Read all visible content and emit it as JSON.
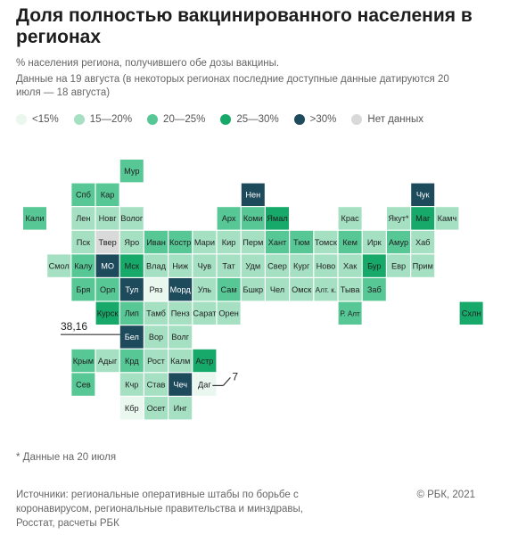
{
  "title": "Доля полностью вакцинированного населения в регионах",
  "subtitle": "% населения региона, получившего обе дозы вакцины.",
  "date_note": "Данные на 19 августа (в некоторых регионах последние доступные данные датируются 20 июля — 18 августа)",
  "footnote": "* Данные на 20 июля",
  "sources": "Источники: региональные оперативные штабы по борьбе с коронавирусом, региональные правительства и минздравы, Росстат, расчеты РБК",
  "copyright": "© РБК, 2021",
  "colors": {
    "c1": "#e9f7ef",
    "c2": "#a6e0c3",
    "c3": "#57c796",
    "c4": "#17a96a",
    "c5": "#1e4b5c",
    "nodata": "#d9d9d9",
    "leader_line": "#333333",
    "cell_text_dark": "#1f1f1f",
    "cell_text_light": "#ffffff"
  },
  "legend": [
    {
      "label": "<15%",
      "cat": "c1"
    },
    {
      "label": "15—20%",
      "cat": "c2"
    },
    {
      "label": "20—25%",
      "cat": "c3"
    },
    {
      "label": "25—30%",
      "cat": "c4"
    },
    {
      "label": ">30%",
      "cat": "c5"
    },
    {
      "label": "Нет данных",
      "cat": "nodata"
    }
  ],
  "chart_data": {
    "type": "heatmap",
    "callouts": [
      {
        "region": "Бел",
        "value": "38,16"
      },
      {
        "region": "Даг",
        "value": "7"
      }
    ],
    "cells": [
      {
        "label": "Мур",
        "col": 4,
        "row": 0,
        "cat": "c3"
      },
      {
        "label": "Спб",
        "col": 2,
        "row": 1,
        "cat": "c3"
      },
      {
        "label": "Кар",
        "col": 3,
        "row": 1,
        "cat": "c3"
      },
      {
        "label": "Нен",
        "col": 9,
        "row": 1,
        "cat": "c5"
      },
      {
        "label": "Чук",
        "col": 16,
        "row": 1,
        "cat": "c5"
      },
      {
        "label": "Кали",
        "col": 0,
        "row": 2,
        "cat": "c3"
      },
      {
        "label": "Лен",
        "col": 2,
        "row": 2,
        "cat": "c2"
      },
      {
        "label": "Новг",
        "col": 3,
        "row": 2,
        "cat": "c2"
      },
      {
        "label": "Волог",
        "col": 4,
        "row": 2,
        "cat": "c2"
      },
      {
        "label": "Арх",
        "col": 8,
        "row": 2,
        "cat": "c3"
      },
      {
        "label": "Коми",
        "col": 9,
        "row": 2,
        "cat": "c3"
      },
      {
        "label": "Ямал",
        "col": 10,
        "row": 2,
        "cat": "c4"
      },
      {
        "label": "Крас",
        "col": 13,
        "row": 2,
        "cat": "c2"
      },
      {
        "label": "Якут*",
        "col": 15,
        "row": 2,
        "cat": "c2"
      },
      {
        "label": "Маг",
        "col": 16,
        "row": 2,
        "cat": "c4"
      },
      {
        "label": "Камч",
        "col": 17,
        "row": 2,
        "cat": "c2"
      },
      {
        "label": "Пск",
        "col": 2,
        "row": 3,
        "cat": "c2"
      },
      {
        "label": "Твер",
        "col": 3,
        "row": 3,
        "cat": "nodata"
      },
      {
        "label": "Яро",
        "col": 4,
        "row": 3,
        "cat": "c2"
      },
      {
        "label": "Иван",
        "col": 5,
        "row": 3,
        "cat": "c3"
      },
      {
        "label": "Костр",
        "col": 6,
        "row": 3,
        "cat": "c3"
      },
      {
        "label": "Мари",
        "col": 7,
        "row": 3,
        "cat": "c2"
      },
      {
        "label": "Кир",
        "col": 8,
        "row": 3,
        "cat": "c2"
      },
      {
        "label": "Перм",
        "col": 9,
        "row": 3,
        "cat": "c2"
      },
      {
        "label": "Хант",
        "col": 10,
        "row": 3,
        "cat": "c3"
      },
      {
        "label": "Тюм",
        "col": 11,
        "row": 3,
        "cat": "c3"
      },
      {
        "label": "Томск",
        "col": 12,
        "row": 3,
        "cat": "c2"
      },
      {
        "label": "Кем",
        "col": 13,
        "row": 3,
        "cat": "c3"
      },
      {
        "label": "Ирк",
        "col": 14,
        "row": 3,
        "cat": "c2"
      },
      {
        "label": "Амур",
        "col": 15,
        "row": 3,
        "cat": "c3"
      },
      {
        "label": "Хаб",
        "col": 16,
        "row": 3,
        "cat": "c2"
      },
      {
        "label": "Смол",
        "col": 1,
        "row": 4,
        "cat": "c2"
      },
      {
        "label": "Калу",
        "col": 2,
        "row": 4,
        "cat": "c3"
      },
      {
        "label": "МО",
        "col": 3,
        "row": 4,
        "cat": "c5"
      },
      {
        "label": "Мск",
        "col": 4,
        "row": 4,
        "cat": "c4"
      },
      {
        "label": "Влад",
        "col": 5,
        "row": 4,
        "cat": "c2"
      },
      {
        "label": "Ниж",
        "col": 6,
        "row": 4,
        "cat": "c2"
      },
      {
        "label": "Чув",
        "col": 7,
        "row": 4,
        "cat": "c2"
      },
      {
        "label": "Тат",
        "col": 8,
        "row": 4,
        "cat": "c2"
      },
      {
        "label": "Удм",
        "col": 9,
        "row": 4,
        "cat": "c2"
      },
      {
        "label": "Свер",
        "col": 10,
        "row": 4,
        "cat": "c2"
      },
      {
        "label": "Кург",
        "col": 11,
        "row": 4,
        "cat": "c2"
      },
      {
        "label": "Ново",
        "col": 12,
        "row": 4,
        "cat": "c2"
      },
      {
        "label": "Хак",
        "col": 13,
        "row": 4,
        "cat": "c2"
      },
      {
        "label": "Бур",
        "col": 14,
        "row": 4,
        "cat": "c4"
      },
      {
        "label": "Евр",
        "col": 15,
        "row": 4,
        "cat": "c2"
      },
      {
        "label": "Прим",
        "col": 16,
        "row": 4,
        "cat": "c2"
      },
      {
        "label": "Бря",
        "col": 2,
        "row": 5,
        "cat": "c3"
      },
      {
        "label": "Орл",
        "col": 3,
        "row": 5,
        "cat": "c3"
      },
      {
        "label": "Тул",
        "col": 4,
        "row": 5,
        "cat": "c5"
      },
      {
        "label": "Ряз",
        "col": 5,
        "row": 5,
        "cat": "c1"
      },
      {
        "label": "Морд",
        "col": 6,
        "row": 5,
        "cat": "c5"
      },
      {
        "label": "Уль",
        "col": 7,
        "row": 5,
        "cat": "c2"
      },
      {
        "label": "Сам",
        "col": 8,
        "row": 5,
        "cat": "c3"
      },
      {
        "label": "Бшкр",
        "col": 9,
        "row": 5,
        "cat": "c2"
      },
      {
        "label": "Чел",
        "col": 10,
        "row": 5,
        "cat": "c2"
      },
      {
        "label": "Омск",
        "col": 11,
        "row": 5,
        "cat": "c2"
      },
      {
        "label": "Алт. к.",
        "col": 12,
        "row": 5,
        "cat": "c2"
      },
      {
        "label": "Тыва",
        "col": 13,
        "row": 5,
        "cat": "c2"
      },
      {
        "label": "Заб",
        "col": 14,
        "row": 5,
        "cat": "c3"
      },
      {
        "label": "Курск",
        "col": 3,
        "row": 6,
        "cat": "c4"
      },
      {
        "label": "Лип",
        "col": 4,
        "row": 6,
        "cat": "c3"
      },
      {
        "label": "Тамб",
        "col": 5,
        "row": 6,
        "cat": "c2"
      },
      {
        "label": "Пенз",
        "col": 6,
        "row": 6,
        "cat": "c2"
      },
      {
        "label": "Сарат",
        "col": 7,
        "row": 6,
        "cat": "c2"
      },
      {
        "label": "Орен",
        "col": 8,
        "row": 6,
        "cat": "c2"
      },
      {
        "label": "Р. Алт",
        "col": 13,
        "row": 6,
        "cat": "c3"
      },
      {
        "label": "Схлн",
        "col": 18,
        "row": 6,
        "cat": "c4"
      },
      {
        "label": "Бел",
        "col": 4,
        "row": 7,
        "cat": "c5"
      },
      {
        "label": "Вор",
        "col": 5,
        "row": 7,
        "cat": "c2"
      },
      {
        "label": "Волг",
        "col": 6,
        "row": 7,
        "cat": "c2"
      },
      {
        "label": "Крым",
        "col": 2,
        "row": 8,
        "cat": "c3"
      },
      {
        "label": "Адыг",
        "col": 3,
        "row": 8,
        "cat": "c2"
      },
      {
        "label": "Крд",
        "col": 4,
        "row": 8,
        "cat": "c3"
      },
      {
        "label": "Рост",
        "col": 5,
        "row": 8,
        "cat": "c2"
      },
      {
        "label": "Калм",
        "col": 6,
        "row": 8,
        "cat": "c2"
      },
      {
        "label": "Астр",
        "col": 7,
        "row": 8,
        "cat": "c4"
      },
      {
        "label": "Сев",
        "col": 2,
        "row": 9,
        "cat": "c3"
      },
      {
        "label": "Кчр",
        "col": 4,
        "row": 9,
        "cat": "c2"
      },
      {
        "label": "Став",
        "col": 5,
        "row": 9,
        "cat": "c2"
      },
      {
        "label": "Чеч",
        "col": 6,
        "row": 9,
        "cat": "c5"
      },
      {
        "label": "Даг",
        "col": 7,
        "row": 9,
        "cat": "c1"
      },
      {
        "label": "Кбр",
        "col": 4,
        "row": 10,
        "cat": "c1"
      },
      {
        "label": "Осет",
        "col": 5,
        "row": 10,
        "cat": "c2"
      },
      {
        "label": "Инг",
        "col": 6,
        "row": 10,
        "cat": "c2"
      }
    ]
  }
}
